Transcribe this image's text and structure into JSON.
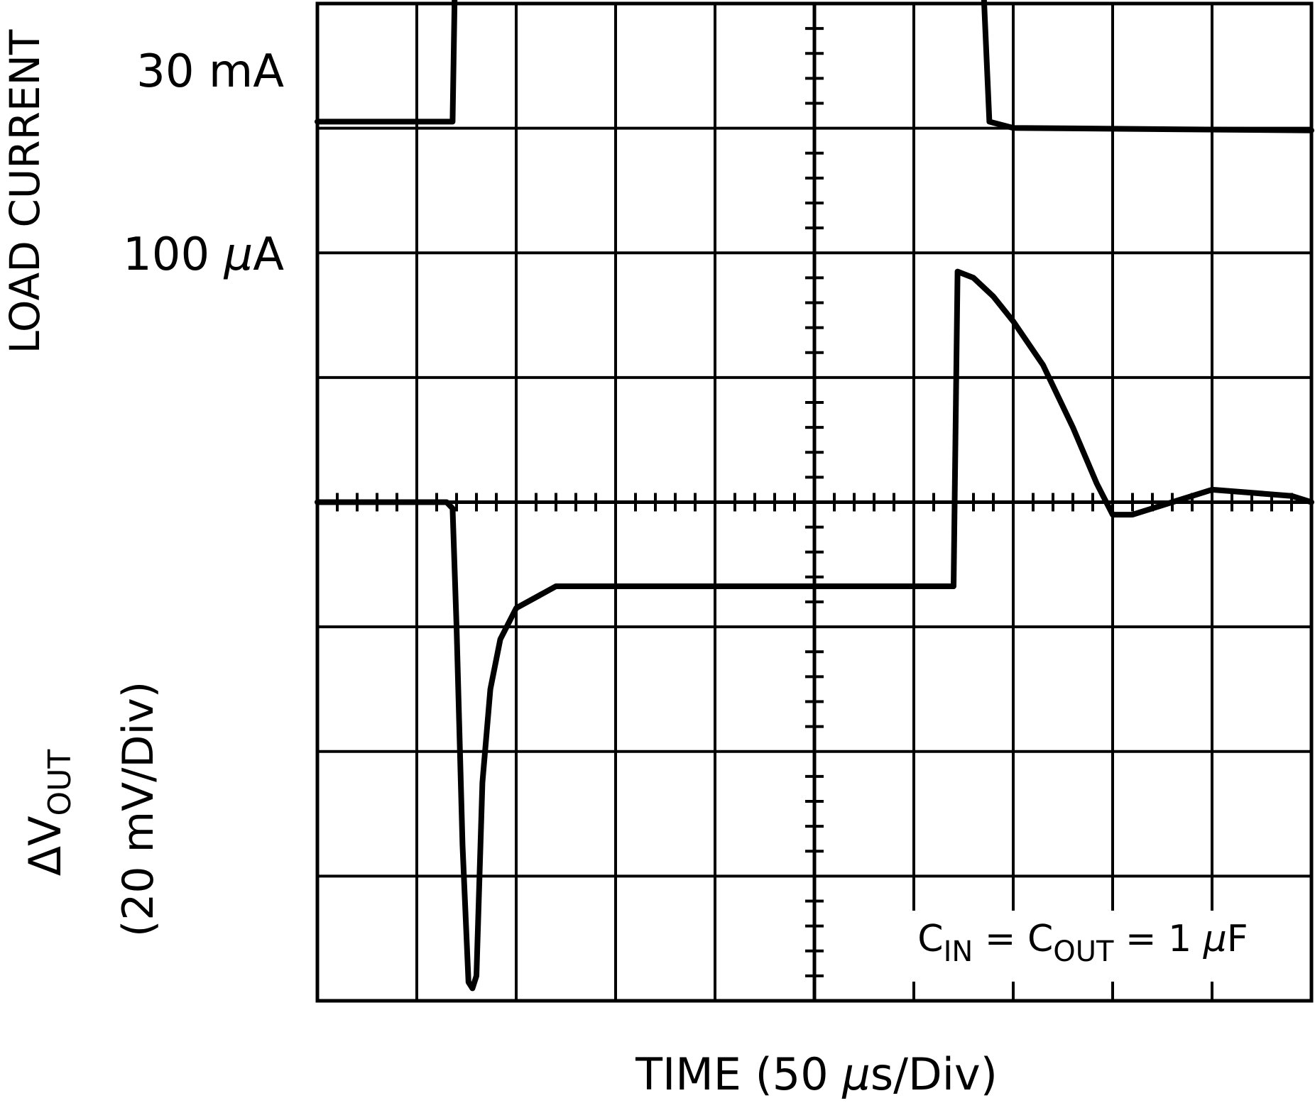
{
  "chart_data": {
    "type": "line",
    "title": "",
    "xlabel": "TIME (50 μs/Div)",
    "xlabel_parts": {
      "prefix": "TIME (50 ",
      "mu": "μ",
      "suffix": "s/Div)"
    },
    "xlim": [
      0,
      500
    ],
    "x_units": "μs",
    "divisions": {
      "x": 10,
      "y": 8
    },
    "grid": true,
    "upper": {
      "ylabel": "LOAD CURRENT",
      "level_labels": {
        "high": "30 mA",
        "low_prefix": "100 ",
        "low_mu": "μ",
        "low_suffix": "A"
      },
      "series": [
        {
          "key": "load_current",
          "x": [
            0,
            68,
            69.5,
            74,
            75.5,
            80,
            332,
            334,
            338,
            350,
            500
          ],
          "y": [
            1.0,
            1.0,
            2.45,
            2.5,
            2.53,
            2.5,
            2.5,
            2.45,
            1.0,
            0.95,
            0.93
          ]
        }
      ]
    },
    "lower": {
      "ylabel_parts": {
        "delta": "Δ",
        "v": "V",
        "sub": "OUT"
      },
      "ylabel_scale": "(20 mV/Div)",
      "y_units": "mV",
      "ylim": [
        -80,
        80
      ],
      "series": [
        {
          "key": "delta_vout",
          "x": [
            0,
            65,
            68,
            70,
            73,
            76,
            78,
            80,
            83,
            87,
            92,
            100,
            120,
            200,
            300,
            320,
            322,
            330,
            340,
            350,
            365,
            380,
            392,
            400,
            410,
            430,
            450,
            470,
            490,
            500
          ],
          "y": [
            0,
            0,
            -1,
            -20,
            -55,
            -77,
            -78,
            -76,
            -45,
            -30,
            -22,
            -17,
            -13.5,
            -13.5,
            -13.5,
            -13.5,
            37,
            36,
            33,
            29,
            22,
            12,
            3,
            -2,
            -2,
            0,
            2,
            1.5,
            1,
            0
          ]
        }
      ]
    },
    "annotation": {
      "c1": "C",
      "s1": "IN",
      "eq1": " = ",
      "c2": "C",
      "s2": "OUT",
      "eq2": " = 1 ",
      "mu": "μ",
      "unit": "F"
    }
  }
}
